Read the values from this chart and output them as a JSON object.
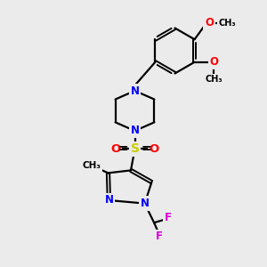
{
  "background_color": "#ebebeb",
  "bond_color": "#000000",
  "nitrogen_color": "#0000ff",
  "oxygen_color": "#ff0000",
  "sulfur_color": "#cccc00",
  "fluorine_color": "#dd00dd",
  "figsize": [
    3.0,
    3.0
  ],
  "dpi": 100,
  "xlim": [
    0,
    10
  ],
  "ylim": [
    0,
    10
  ]
}
